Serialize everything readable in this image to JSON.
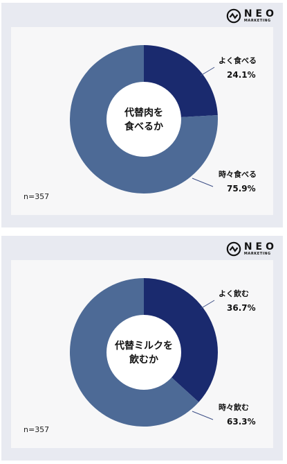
{
  "brand": {
    "name": "NEO",
    "sub": "MARKETING"
  },
  "chart_data": [
    {
      "type": "pie",
      "center_label": [
        "代替肉を",
        "食べるか"
      ],
      "n_label": "n=357",
      "categories": [
        "よく食べる",
        "時々食べる"
      ],
      "values": [
        24.1,
        75.9
      ],
      "value_labels": [
        "24.1%",
        "75.9%"
      ],
      "colors": [
        "#1a2a6e",
        "#4d6a96"
      ]
    },
    {
      "type": "pie",
      "center_label": [
        "代替ミルクを",
        "飲むか"
      ],
      "n_label": "n=357",
      "categories": [
        "よく飲む",
        "時々飲む"
      ],
      "values": [
        36.7,
        63.3
      ],
      "value_labels": [
        "36.7%",
        "63.3%"
      ],
      "colors": [
        "#1a2a6e",
        "#4d6a96"
      ]
    }
  ]
}
